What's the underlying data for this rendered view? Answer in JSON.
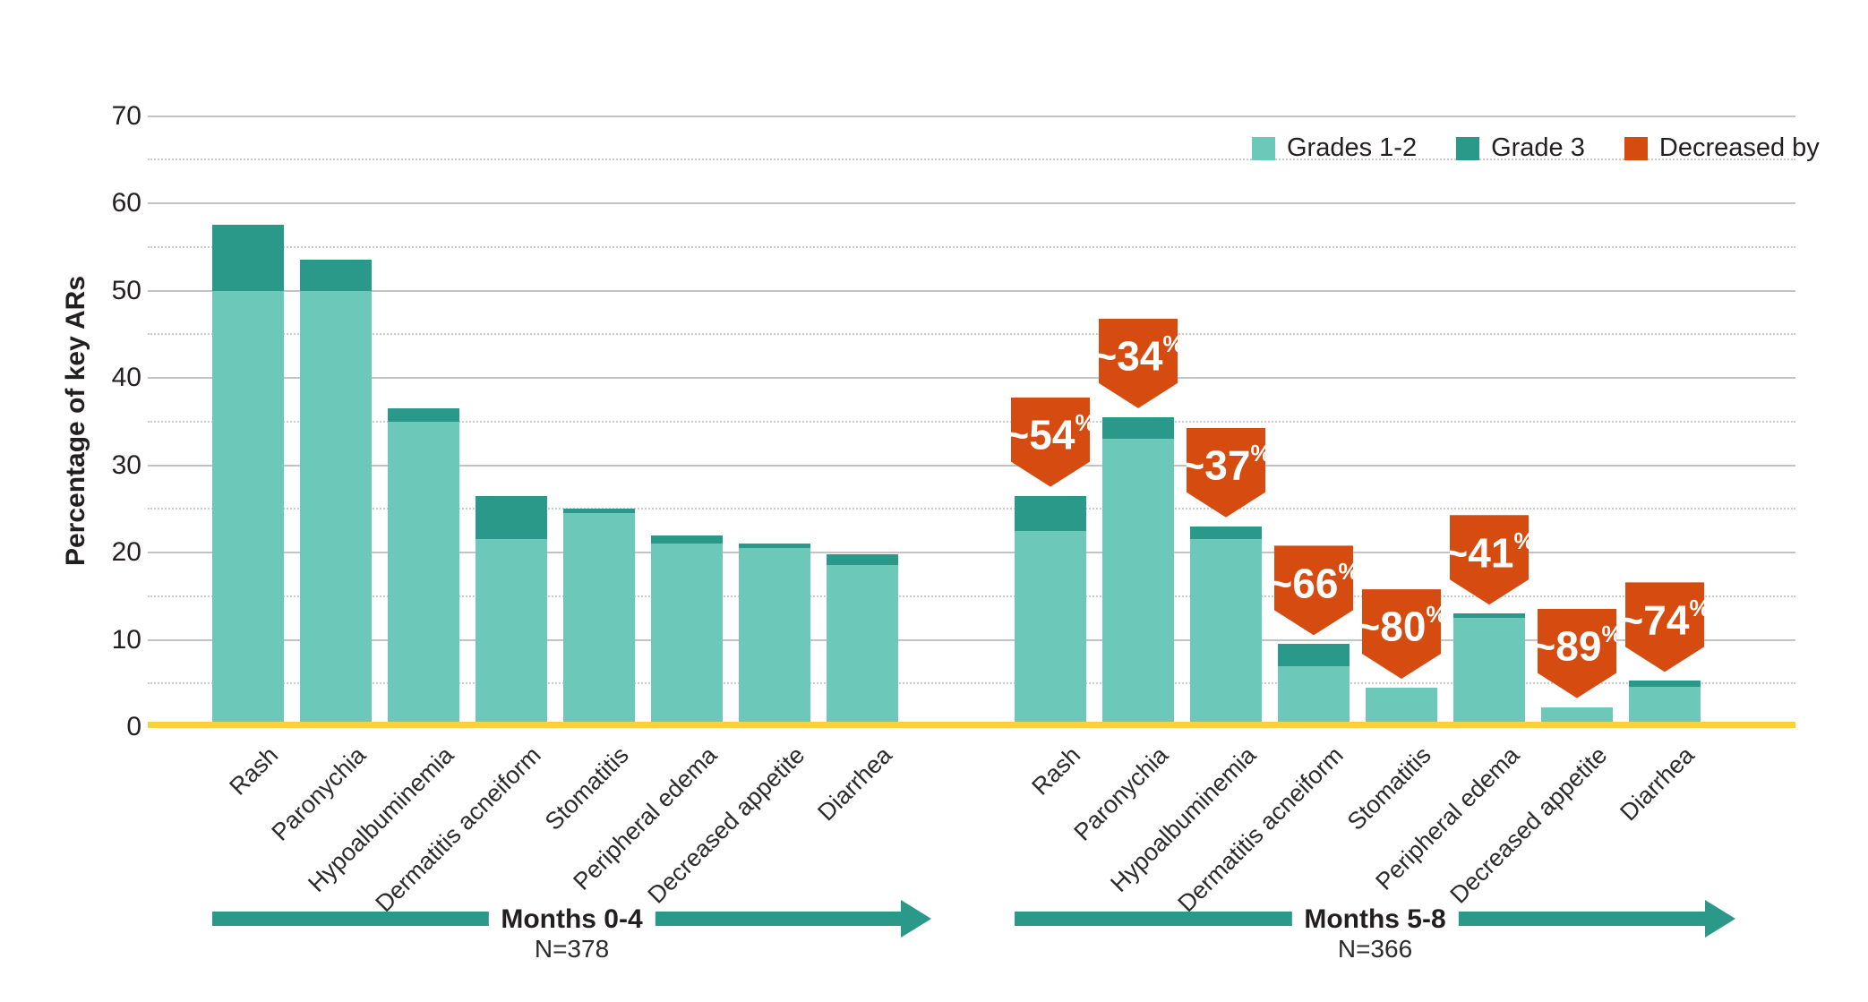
{
  "colors": {
    "grades_1_2": "#6CC9BA",
    "grade_3": "#2B998A",
    "decreased_badge": "#D54B10",
    "baseline_yellow": "#F5D33D",
    "arrow_teal": "#2B998A",
    "grid_solid": "#C3C3C3",
    "grid_dotted": "#CBCBCB",
    "text": "#231F20"
  },
  "y_axis": {
    "label": "Percentage of key ARs",
    "ticks": [
      0,
      10,
      20,
      30,
      40,
      50,
      60,
      70
    ],
    "max": 70
  },
  "legend": {
    "items": [
      {
        "label": "Grades 1-2",
        "color": "#6CC9BA"
      },
      {
        "label": "Grade 3",
        "color": "#2B998A"
      },
      {
        "label": "Decreased by",
        "color": "#D54B10"
      }
    ]
  },
  "chart_data": {
    "type": "bar",
    "stacked": true,
    "grid": "solid gridlines every 10, dotted every 5",
    "legend_position": "top-right",
    "ylabel": "Percentage of key ARs",
    "ylim": [
      0,
      70
    ],
    "categories": [
      "Rash",
      "Paronychia",
      "Hypoalbuminemia",
      "Dermatitis acneiform",
      "Stomatitis",
      "Peripheral edema",
      "Decreased appetite",
      "Diarrhea"
    ],
    "groups": [
      {
        "name": "Months 0-4",
        "n_label": "N=378",
        "series": [
          {
            "name": "Grades 1-2",
            "values": [
              50,
              50,
              35,
              21.5,
              24.5,
              21,
              20.5,
              18.6
            ]
          },
          {
            "name": "Grade 3",
            "values": [
              7.5,
              3.5,
              1.5,
              5,
              0.5,
              1,
              0.5,
              1.2
            ]
          }
        ],
        "badges": [
          null,
          null,
          null,
          null,
          null,
          null,
          null,
          null
        ]
      },
      {
        "name": "Months 5-8",
        "n_label": "N=366",
        "series": [
          {
            "name": "Grades 1-2",
            "values": [
              22.5,
              33,
              21.5,
              7,
              4.5,
              12.5,
              2.3,
              4.6
            ]
          },
          {
            "name": "Grade 3",
            "values": [
              4,
              2.5,
              1.5,
              2.5,
              0,
              0.5,
              0,
              0.7
            ]
          }
        ],
        "badges": [
          "~54%",
          "~34%",
          "~37%",
          "~66%",
          "~80%",
          "~41%",
          "~89%",
          "~74%"
        ]
      }
    ]
  }
}
